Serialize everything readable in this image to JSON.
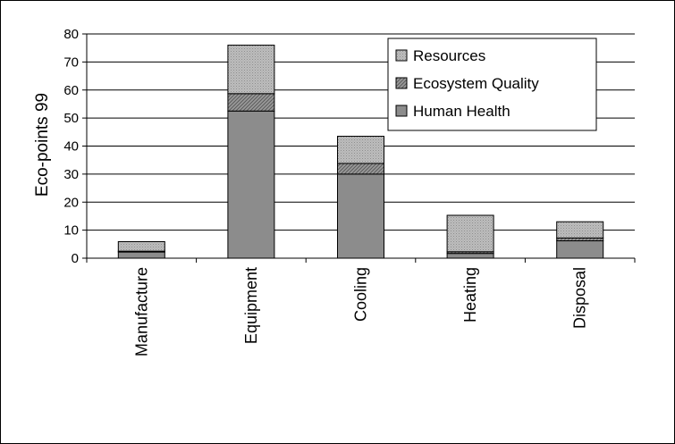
{
  "chart_data": {
    "type": "bar",
    "stacked": true,
    "categories": [
      "Manufacture",
      "Equipment",
      "Cooling",
      "Heating",
      "Disposal"
    ],
    "series": [
      {
        "name": "Human Health",
        "values": [
          2.2,
          52.5,
          30.0,
          1.7,
          6.2
        ],
        "color": "#8c8c8c",
        "pattern": "solid"
      },
      {
        "name": "Ecosystem Quality",
        "values": [
          0.3,
          6.2,
          3.8,
          0.6,
          1.0
        ],
        "color": "#8c8c8c",
        "pattern": "hatch"
      },
      {
        "name": "Resources",
        "values": [
          3.4,
          17.3,
          9.7,
          13.0,
          5.8
        ],
        "color": "#b4b4b4",
        "pattern": "dots"
      }
    ],
    "ylabel": "Eco-points 99",
    "xlabel": "",
    "title": "",
    "ylim": [
      0,
      80
    ],
    "yticks": [
      0,
      10,
      20,
      30,
      40,
      50,
      60,
      70,
      80
    ],
    "grid": true,
    "legend_position": "top-right",
    "legend_order": [
      "Resources",
      "Ecosystem Quality",
      "Human Health"
    ]
  }
}
